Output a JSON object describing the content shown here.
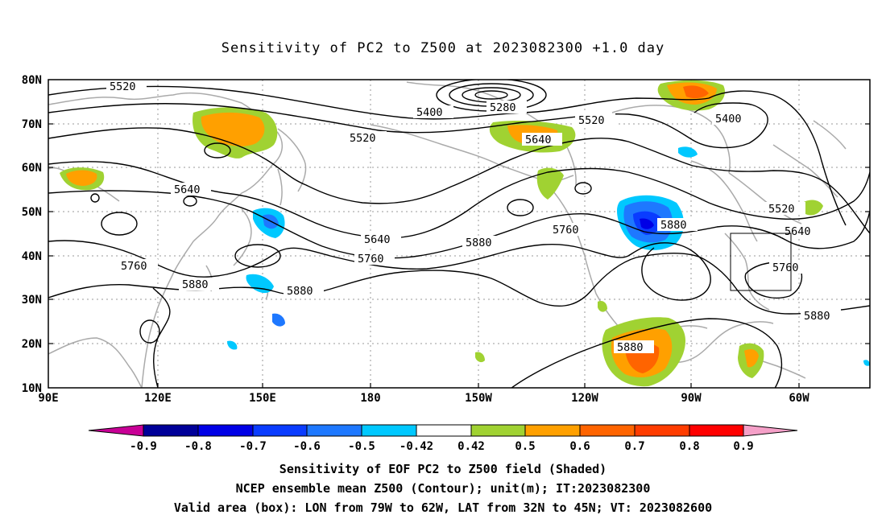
{
  "title": "Sensitivity of PC2 to Z500 at 2023082300 +1.0 day",
  "lat_labels": [
    "80N",
    "70N",
    "60N",
    "50N",
    "40N",
    "30N",
    "20N",
    "10N"
  ],
  "lon_labels": [
    "90E",
    "120E",
    "150E",
    "180",
    "150W",
    "120W",
    "90W",
    "60W"
  ],
  "contour_labels": [
    "5520",
    "5400",
    "5280",
    "5520",
    "5400",
    "5520",
    "5640",
    "5640",
    "5520",
    "5640",
    "5640",
    "5760",
    "5880",
    "5760",
    "5760",
    "5880",
    "5880",
    "5880",
    "5760",
    "5880",
    "5880"
  ],
  "colorbar": {
    "labels": [
      "-0.9",
      "-0.8",
      "-0.7",
      "-0.6",
      "-0.5",
      "-0.42",
      "0.42",
      "0.5",
      "0.6",
      "0.7",
      "0.8",
      "0.9"
    ],
    "colors": [
      "#000099",
      "#0000e6",
      "#0a3cff",
      "#1e78ff",
      "#00c8ff",
      "#ffffff",
      "#a0d232",
      "#ffa000",
      "#ff6400",
      "#ff3c00",
      "#ff0000"
    ],
    "low_extend_color": "#c80096",
    "high_extend_color": "#f5a0c8"
  },
  "footer": [
    "Sensitivity of EOF PC2 to Z500 field (Shaded)",
    "NCEP ensemble mean Z500 (Contour); unit(m); IT:2023082300",
    "Valid area (box): LON from 79W to 62W, LAT from 32N to 45N; VT: 2023082600"
  ]
}
